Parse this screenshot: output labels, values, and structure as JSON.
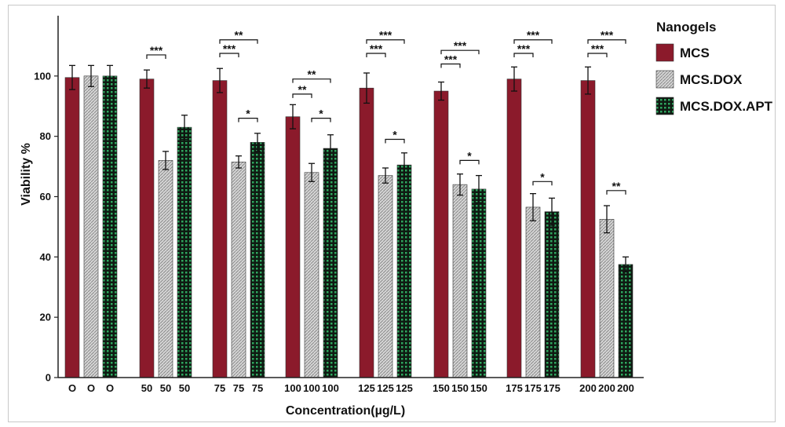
{
  "chart_data": {
    "type": "bar",
    "title": "",
    "xlabel": "Concentration(µg/L)",
    "ylabel": "Viability %",
    "ylim": [
      0,
      120
    ],
    "yticks": [
      0,
      20,
      40,
      60,
      80,
      100
    ],
    "groups": [
      "0",
      "50",
      "75",
      "100",
      "125",
      "150",
      "175",
      "200"
    ],
    "bar_labels": [
      [
        "O",
        "O",
        "O"
      ],
      [
        "50",
        "50",
        "50"
      ],
      [
        "75",
        "75",
        "75"
      ],
      [
        "100",
        "100",
        "100"
      ],
      [
        "125",
        "125",
        "125"
      ],
      [
        "150",
        "150",
        "150"
      ],
      [
        "175",
        "175",
        "175"
      ],
      [
        "200",
        "200",
        "200"
      ]
    ],
    "legend": {
      "title": "Nanogels",
      "position": "right"
    },
    "series": [
      {
        "name": "MCS",
        "color": "#8b1a2b",
        "pattern": "solid",
        "values": [
          99.5,
          99,
          98.5,
          86.5,
          96,
          95,
          99,
          98.5
        ],
        "errors": [
          4,
          3,
          4,
          4,
          5,
          3,
          4,
          4.5
        ]
      },
      {
        "name": "MCS.DOX",
        "color": "#c8c8c8",
        "pattern": "hatch",
        "values": [
          100,
          72,
          71.5,
          68,
          67,
          64,
          56.5,
          52.5
        ],
        "errors": [
          3.5,
          3,
          2,
          3,
          2.5,
          3.5,
          4.5,
          4.5
        ]
      },
      {
        "name": "MCS.DOX.APT",
        "color": "#1f6b3a",
        "pattern": "grid",
        "values": [
          100,
          83,
          78,
          76,
          70.5,
          62.5,
          55,
          37.5
        ],
        "errors": [
          3.5,
          4,
          3,
          4.5,
          4,
          4.5,
          4.5,
          2.5
        ]
      }
    ],
    "significance": [
      {
        "group": 1,
        "from": 0,
        "to": 1,
        "y": 107,
        "label": "***"
      },
      {
        "group": 2,
        "from": 0,
        "to": 1,
        "y": 107.5,
        "label": "***"
      },
      {
        "group": 2,
        "from": 0,
        "to": 2,
        "y": 112,
        "label": "**"
      },
      {
        "group": 2,
        "from": 1,
        "to": 2,
        "y": 86,
        "label": "*"
      },
      {
        "group": 3,
        "from": 0,
        "to": 1,
        "y": 94,
        "label": "**"
      },
      {
        "group": 3,
        "from": 0,
        "to": 2,
        "y": 99,
        "label": "**"
      },
      {
        "group": 3,
        "from": 1,
        "to": 2,
        "y": 86,
        "label": "*"
      },
      {
        "group": 4,
        "from": 0,
        "to": 1,
        "y": 107.5,
        "label": "***"
      },
      {
        "group": 4,
        "from": 0,
        "to": 2,
        "y": 112,
        "label": "***"
      },
      {
        "group": 4,
        "from": 1,
        "to": 2,
        "y": 79,
        "label": "*"
      },
      {
        "group": 5,
        "from": 0,
        "to": 1,
        "y": 104,
        "label": "***"
      },
      {
        "group": 5,
        "from": 0,
        "to": 2,
        "y": 108.5,
        "label": "***"
      },
      {
        "group": 5,
        "from": 1,
        "to": 2,
        "y": 72,
        "label": "*"
      },
      {
        "group": 6,
        "from": 0,
        "to": 1,
        "y": 107.5,
        "label": "***"
      },
      {
        "group": 6,
        "from": 0,
        "to": 2,
        "y": 112,
        "label": "***"
      },
      {
        "group": 6,
        "from": 1,
        "to": 2,
        "y": 65,
        "label": "*"
      },
      {
        "group": 7,
        "from": 0,
        "to": 1,
        "y": 107.5,
        "label": "***"
      },
      {
        "group": 7,
        "from": 0,
        "to": 2,
        "y": 112,
        "label": "***"
      },
      {
        "group": 7,
        "from": 1,
        "to": 2,
        "y": 62,
        "label": "**"
      }
    ]
  }
}
